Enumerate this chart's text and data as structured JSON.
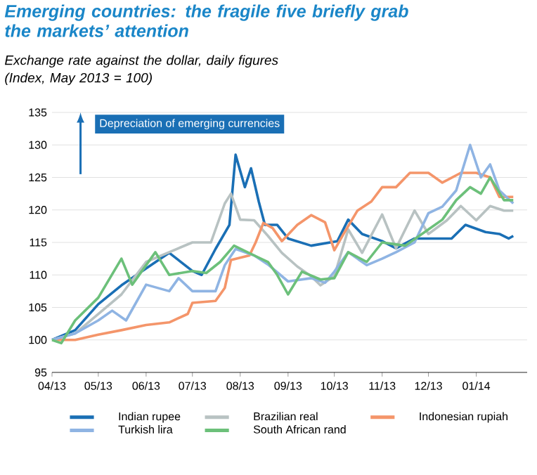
{
  "chart_data": {
    "type": "line",
    "title": "Emerging countries: the fragile five briefly grab the markets’ attention",
    "subtitle": "Exchange rate against the dollar, daily figures (Index, May 2013 = 100)",
    "annotations": [
      "Depreciation of emerging currencies"
    ],
    "series": [
      {
        "name": "Indian rupee",
        "color": "#1a6fb5",
        "x": [
          "2013-04-01",
          "2013-04-16",
          "2013-05-01",
          "2013-05-16",
          "2013-06-01",
          "2013-06-16",
          "2013-07-01",
          "2013-07-07",
          "2013-07-16",
          "2013-07-25",
          "2013-07-29",
          "2013-08-04",
          "2013-08-08",
          "2013-08-13",
          "2013-08-17",
          "2013-08-25",
          "2013-09-01",
          "2013-09-16",
          "2013-10-03",
          "2013-10-10",
          "2013-10-19",
          "2013-11-01",
          "2013-11-10",
          "2013-11-22",
          "2013-12-01",
          "2013-12-16",
          "2013-12-25",
          "2014-01-07",
          "2014-01-16",
          "2014-01-22",
          "2014-01-25"
        ],
        "values": [
          100,
          101.5,
          105.5,
          108.4,
          111,
          113.4,
          110.6,
          110,
          114,
          117.7,
          128.5,
          123.5,
          126.4,
          121.3,
          117.7,
          117.7,
          115.6,
          114.5,
          115.2,
          118.5,
          116.3,
          115.2,
          114.1,
          115.6,
          115.6,
          115.6,
          117.7,
          116.6,
          116.3,
          115.6,
          116
        ]
      },
      {
        "name": "Brazilian real",
        "color": "#b8c2c2",
        "x": [
          "2013-04-01",
          "2013-04-16",
          "2013-05-01",
          "2013-05-16",
          "2013-06-01",
          "2013-06-16",
          "2013-07-01",
          "2013-07-13",
          "2013-07-22",
          "2013-07-26",
          "2013-08-01",
          "2013-08-10",
          "2013-08-19",
          "2013-08-28",
          "2013-09-07",
          "2013-09-16",
          "2013-09-22",
          "2013-10-01",
          "2013-10-10",
          "2013-10-19",
          "2013-11-01",
          "2013-11-10",
          "2013-11-22",
          "2013-12-01",
          "2013-12-13",
          "2013-12-22",
          "2014-01-01",
          "2014-01-10",
          "2014-01-19",
          "2014-01-25"
        ],
        "values": [
          100,
          101,
          104,
          107,
          112,
          113.5,
          115,
          115,
          121,
          122.5,
          118.5,
          118.4,
          116,
          113.4,
          111.3,
          109.8,
          108.4,
          109.8,
          117,
          113.4,
          119.3,
          114.1,
          119.9,
          116.3,
          118.4,
          120.6,
          118.4,
          120.6,
          119.9,
          119.9
        ]
      },
      {
        "name": "Indonesian rupiah",
        "color": "#f4956a",
        "x": [
          "2013-04-01",
          "2013-04-16",
          "2013-05-01",
          "2013-05-16",
          "2013-06-01",
          "2013-06-16",
          "2013-06-28",
          "2013-07-01",
          "2013-07-16",
          "2013-07-22",
          "2013-07-26",
          "2013-08-07",
          "2013-08-11",
          "2013-08-16",
          "2013-08-22",
          "2013-08-28",
          "2013-09-07",
          "2013-09-16",
          "2013-09-25",
          "2013-10-01",
          "2013-10-07",
          "2013-10-16",
          "2013-10-25",
          "2013-11-01",
          "2013-11-10",
          "2013-11-19",
          "2013-12-01",
          "2013-12-10",
          "2013-12-22",
          "2014-01-01",
          "2014-01-10",
          "2014-01-16",
          "2014-01-25"
        ],
        "values": [
          100,
          100,
          100.8,
          101.5,
          102.3,
          102.7,
          104,
          105.7,
          106,
          108,
          112.3,
          113,
          115,
          118,
          117.2,
          115.2,
          117.7,
          119.2,
          118.1,
          113.8,
          116.3,
          119.9,
          121.3,
          123.5,
          123.5,
          125.7,
          125.7,
          124.2,
          125.7,
          125.7,
          125,
          122,
          122
        ]
      },
      {
        "name": "Turkish lira",
        "color": "#8fb4e3",
        "x": [
          "2013-04-01",
          "2013-04-16",
          "2013-05-01",
          "2013-05-10",
          "2013-05-19",
          "2013-06-01",
          "2013-06-16",
          "2013-06-22",
          "2013-07-01",
          "2013-07-16",
          "2013-07-22",
          "2013-07-29",
          "2013-08-10",
          "2013-08-19",
          "2013-09-01",
          "2013-09-16",
          "2013-09-25",
          "2013-10-01",
          "2013-10-10",
          "2013-10-22",
          "2013-11-01",
          "2013-11-10",
          "2013-11-22",
          "2013-12-01",
          "2013-12-10",
          "2013-12-19",
          "2013-12-28",
          "2014-01-04",
          "2014-01-10",
          "2014-01-16",
          "2014-01-25"
        ],
        "values": [
          100,
          101,
          103,
          104.5,
          103,
          108.5,
          107.5,
          109.5,
          107.5,
          107.5,
          111.5,
          114,
          113,
          111.6,
          109,
          109.5,
          108.8,
          110.5,
          113.5,
          111.5,
          112.5,
          113.5,
          115,
          119.5,
          120.5,
          123,
          130,
          125,
          127,
          123,
          121
        ]
      },
      {
        "name": "South African rand",
        "color": "#6cc07a",
        "x": [
          "2013-04-01",
          "2013-04-07",
          "2013-04-16",
          "2013-05-01",
          "2013-05-16",
          "2013-05-23",
          "2013-06-07",
          "2013-06-16",
          "2013-07-01",
          "2013-07-10",
          "2013-07-19",
          "2013-07-28",
          "2013-08-10",
          "2013-08-19",
          "2013-08-25",
          "2013-09-01",
          "2013-09-10",
          "2013-09-22",
          "2013-10-01",
          "2013-10-10",
          "2013-10-22",
          "2013-11-01",
          "2013-11-16",
          "2013-12-01",
          "2013-12-10",
          "2013-12-19",
          "2013-12-28",
          "2014-01-04",
          "2014-01-10",
          "2014-01-19",
          "2014-01-25"
        ],
        "values": [
          100,
          99.5,
          103,
          106.5,
          112.5,
          108.5,
          113.5,
          110,
          110.6,
          110.3,
          112,
          114.5,
          113,
          112,
          110,
          107,
          110.5,
          109.3,
          109.5,
          113.5,
          112,
          115,
          114.5,
          117,
          118.5,
          121.5,
          123.5,
          122.5,
          125,
          121.5,
          121.5
        ]
      }
    ],
    "xlim": [
      "2013-04-01",
      "2014-02-03"
    ],
    "xticks": [
      {
        "value": "2013-04-01",
        "label": "04/13"
      },
      {
        "value": "2013-05-01",
        "label": "05/13"
      },
      {
        "value": "2013-06-01",
        "label": "06/13"
      },
      {
        "value": "2013-07-01",
        "label": "07/13"
      },
      {
        "value": "2013-08-01",
        "label": "08/13"
      },
      {
        "value": "2013-09-01",
        "label": "09/13"
      },
      {
        "value": "2013-10-01",
        "label": "10/13"
      },
      {
        "value": "2013-11-01",
        "label": "11/13"
      },
      {
        "value": "2013-12-01",
        "label": "12/13"
      },
      {
        "value": "2014-01-01",
        "label": "01/14"
      }
    ],
    "ylim": [
      95,
      135
    ],
    "yticks": [
      95,
      100,
      105,
      110,
      115,
      120,
      125,
      130,
      135
    ],
    "grid": "y",
    "legend": "bottom",
    "marker": "none",
    "line_style": "solid"
  }
}
